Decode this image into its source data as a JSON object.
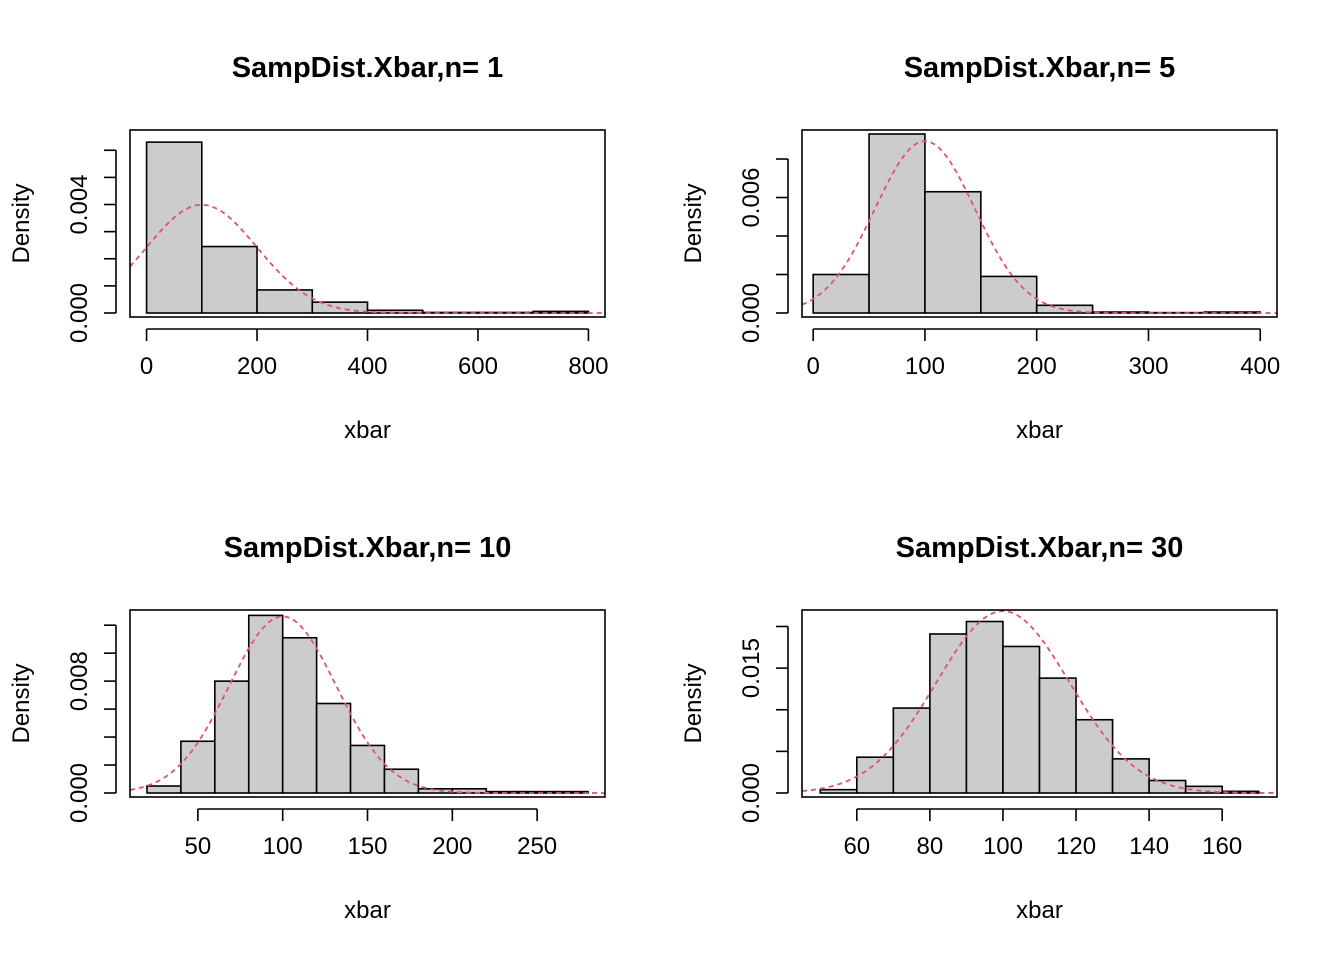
{
  "chart_data": [
    {
      "type": "bar",
      "title": "SampDist.Xbar,n= 1",
      "xlabel": "xbar",
      "ylabel": "Density",
      "xlim": [
        -30,
        830
      ],
      "ylim": [
        0,
        0.0066
      ],
      "x_ticks": [
        0,
        200,
        400,
        600,
        800
      ],
      "x_tick_labels": [
        "0",
        "200",
        "400",
        "600",
        "800"
      ],
      "y_ticks": [
        0,
        0.001,
        0.002,
        0.003,
        0.004,
        0.005,
        0.006
      ],
      "y_tick_labels": [
        "0.000",
        "",
        "",
        "",
        "0.004",
        "",
        ""
      ],
      "bins": [
        {
          "x0": 0,
          "x1": 100,
          "density": 0.0063
        },
        {
          "x0": 100,
          "x1": 200,
          "density": 0.00245
        },
        {
          "x0": 200,
          "x1": 300,
          "density": 0.00085
        },
        {
          "x0": 300,
          "x1": 400,
          "density": 0.0004
        },
        {
          "x0": 400,
          "x1": 500,
          "density": 0.0001
        },
        {
          "x0": 500,
          "x1": 600,
          "density": 2e-05
        },
        {
          "x0": 600,
          "x1": 700,
          "density": 2e-05
        },
        {
          "x0": 700,
          "x1": 800,
          "density": 6e-05
        }
      ],
      "normal_curve": {
        "mean": 100,
        "sd": 100,
        "color": "#DF536B"
      }
    },
    {
      "type": "bar",
      "title": "SampDist.Xbar,n= 5",
      "xlabel": "xbar",
      "ylabel": "Density",
      "xlim": [
        -10,
        415
      ],
      "ylim": [
        0,
        0.0093
      ],
      "x_ticks": [
        0,
        100,
        200,
        300,
        400
      ],
      "x_tick_labels": [
        "0",
        "100",
        "200",
        "300",
        "400"
      ],
      "y_ticks": [
        0,
        0.002,
        0.004,
        0.006,
        0.008
      ],
      "y_tick_labels": [
        "0.000",
        "",
        "",
        "0.006",
        ""
      ],
      "bins": [
        {
          "x0": 0,
          "x1": 50,
          "density": 0.002
        },
        {
          "x0": 50,
          "x1": 100,
          "density": 0.0093
        },
        {
          "x0": 100,
          "x1": 150,
          "density": 0.0063
        },
        {
          "x0": 150,
          "x1": 200,
          "density": 0.0019
        },
        {
          "x0": 200,
          "x1": 250,
          "density": 0.0004
        },
        {
          "x0": 250,
          "x1": 300,
          "density": 5e-05
        },
        {
          "x0": 300,
          "x1": 350,
          "density": 2e-05
        },
        {
          "x0": 350,
          "x1": 400,
          "density": 5e-05
        }
      ],
      "normal_curve": {
        "mean": 100,
        "sd": 44.7,
        "color": "#DF536B"
      }
    },
    {
      "type": "bar",
      "title": "SampDist.Xbar,n= 10",
      "xlabel": "xbar",
      "ylabel": "Density",
      "xlim": [
        10,
        290
      ],
      "ylim": [
        0,
        0.0128
      ],
      "x_ticks": [
        50,
        100,
        150,
        200,
        250
      ],
      "x_tick_labels": [
        "50",
        "100",
        "150",
        "200",
        "250"
      ],
      "y_ticks": [
        0,
        0.002,
        0.004,
        0.006,
        0.008,
        0.01,
        0.012
      ],
      "y_tick_labels": [
        "0.000",
        "",
        "",
        "",
        "0.008",
        "",
        ""
      ],
      "bins": [
        {
          "x0": 20,
          "x1": 40,
          "density": 0.0005
        },
        {
          "x0": 40,
          "x1": 60,
          "density": 0.0037
        },
        {
          "x0": 60,
          "x1": 80,
          "density": 0.008
        },
        {
          "x0": 80,
          "x1": 100,
          "density": 0.0127
        },
        {
          "x0": 100,
          "x1": 120,
          "density": 0.0111
        },
        {
          "x0": 120,
          "x1": 140,
          "density": 0.0064
        },
        {
          "x0": 140,
          "x1": 160,
          "density": 0.0034
        },
        {
          "x0": 160,
          "x1": 180,
          "density": 0.0017
        },
        {
          "x0": 180,
          "x1": 200,
          "density": 0.0003
        },
        {
          "x0": 200,
          "x1": 220,
          "density": 0.0003
        },
        {
          "x0": 220,
          "x1": 240,
          "density": 0.0001
        },
        {
          "x0": 240,
          "x1": 260,
          "density": 0.0001
        },
        {
          "x0": 260,
          "x1": 280,
          "density": 0.0001
        }
      ],
      "normal_curve": {
        "mean": 100,
        "sd": 31.6,
        "color": "#DF536B"
      }
    },
    {
      "type": "bar",
      "title": "SampDist.Xbar,n= 30",
      "xlabel": "xbar",
      "ylabel": "Density",
      "xlim": [
        45,
        175
      ],
      "ylim": [
        0,
        0.0215
      ],
      "x_ticks": [
        60,
        80,
        100,
        120,
        140,
        160
      ],
      "x_tick_labels": [
        "60",
        "80",
        "100",
        "120",
        "140",
        "160"
      ],
      "y_ticks": [
        0,
        0.005,
        0.01,
        0.015,
        0.02
      ],
      "y_tick_labels": [
        "0.000",
        "",
        "",
        "0.015",
        ""
      ],
      "bins": [
        {
          "x0": 50,
          "x1": 60,
          "density": 0.0004
        },
        {
          "x0": 60,
          "x1": 70,
          "density": 0.0043
        },
        {
          "x0": 70,
          "x1": 80,
          "density": 0.0102
        },
        {
          "x0": 80,
          "x1": 90,
          "density": 0.0191
        },
        {
          "x0": 90,
          "x1": 100,
          "density": 0.0206
        },
        {
          "x0": 100,
          "x1": 110,
          "density": 0.0176
        },
        {
          "x0": 110,
          "x1": 120,
          "density": 0.0138
        },
        {
          "x0": 120,
          "x1": 130,
          "density": 0.0088
        },
        {
          "x0": 130,
          "x1": 140,
          "density": 0.0041
        },
        {
          "x0": 140,
          "x1": 150,
          "density": 0.0015
        },
        {
          "x0": 150,
          "x1": 160,
          "density": 0.0008
        },
        {
          "x0": 160,
          "x1": 170,
          "density": 0.0002
        }
      ],
      "normal_curve": {
        "mean": 100,
        "sd": 18.26,
        "color": "#DF536B"
      }
    }
  ]
}
